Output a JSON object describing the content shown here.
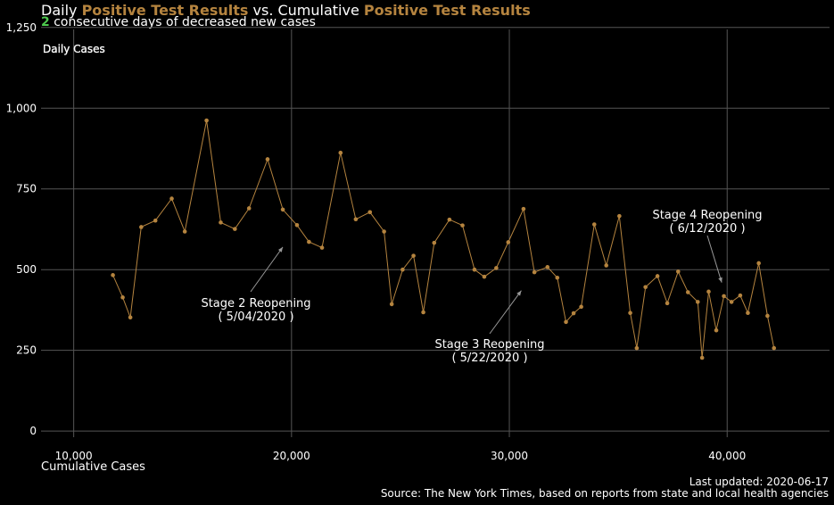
{
  "header": {
    "title_part1": "Daily ",
    "title_hl1": "Positive Test Results",
    "title_part2": " vs. Cumulative ",
    "title_hl2": "Positive Test Results",
    "streak_count": "2",
    "streak_text": " consecutive days of decreased new cases"
  },
  "footer": {
    "updated": "Last updated: 2020-06-17",
    "source": "Source: The New York Times, based on reports from state and local health agencies"
  },
  "colors": {
    "series": "#b5843f",
    "background": "#000000",
    "grid": "#555555",
    "streak": "#4ec94e"
  },
  "chart_data": {
    "type": "line",
    "ylabel": "Daily Cases",
    "xlabel": "Cumulative Cases",
    "xlim": [
      8500,
      44700
    ],
    "ylim": [
      -30,
      1255
    ],
    "xticks": [
      10000,
      20000,
      30000,
      40000
    ],
    "xtick_labels": [
      "10,000",
      "20,000",
      "30,000",
      "40,000"
    ],
    "yticks": [
      0,
      250,
      500,
      750,
      1000,
      1250
    ],
    "ytick_labels": [
      "0",
      "250",
      "500",
      "750",
      "1,000",
      "1,250"
    ],
    "grid": true,
    "series": [
      {
        "x": [
          11800,
          12250,
          12600,
          13100,
          13750,
          14500,
          15100,
          16100,
          16750,
          17400,
          18050,
          18900,
          19600,
          20250,
          20800,
          21400,
          22250,
          22950,
          23600,
          24250,
          24600,
          25100,
          25600,
          26050,
          26550,
          27250,
          27850,
          28400,
          28850,
          29400,
          29950,
          30650,
          31150,
          31750,
          32200,
          32600,
          32950,
          33300,
          33900,
          34450,
          35050,
          35550,
          35850,
          36250,
          36800,
          37250,
          37750,
          38200,
          38650,
          38850,
          39150,
          39500,
          39850,
          40200,
          40600,
          40950,
          41450,
          41850,
          42150
        ],
        "y": [
          483,
          414,
          352,
          632,
          652,
          720,
          618,
          962,
          646,
          626,
          690,
          842,
          686,
          638,
          586,
          568,
          862,
          656,
          678,
          618,
          393,
          500,
          543,
          368,
          583,
          655,
          637,
          500,
          478,
          505,
          585,
          688,
          492,
          508,
          475,
          338,
          365,
          385,
          640,
          513,
          666,
          366,
          257,
          446,
          480,
          396,
          494,
          430,
          400,
          227,
          432,
          312,
          418,
          400,
          420,
          366,
          520,
          357,
          257
        ]
      }
    ],
    "annotations": [
      {
        "text": "Stage 2 Reopening\n( 5/04/2020 )",
        "x": 19600,
        "y": 570
      },
      {
        "text": "Stage 3 Reopening\n( 5/22/2020 )",
        "x": 30550,
        "y": 435
      },
      {
        "text": "Stage 4 Reopening\n( 6/12/2020 )",
        "x": 39750,
        "y": 460
      }
    ]
  }
}
